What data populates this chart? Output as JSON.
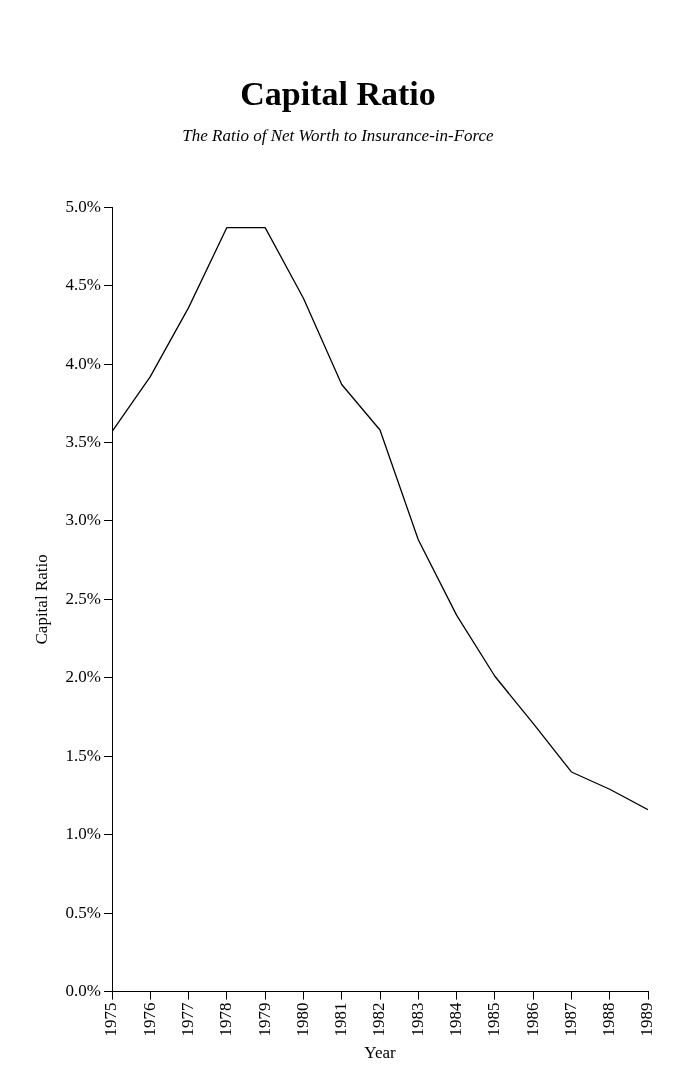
{
  "chart_data": {
    "type": "line",
    "title": "Capital Ratio",
    "subtitle": "The Ratio of Net Worth to Insurance-in-Force",
    "xlabel": "Year",
    "ylabel": "Capital Ratio",
    "x": [
      1975,
      1976,
      1977,
      1978,
      1979,
      1980,
      1981,
      1982,
      1983,
      1984,
      1985,
      1986,
      1987,
      1988,
      1989
    ],
    "series": [
      {
        "color": "#000000",
        "values": [
          3.57,
          3.92,
          4.36,
          4.87,
          4.87,
          4.42,
          3.87,
          3.58,
          2.88,
          2.4,
          2.01,
          1.71,
          1.4,
          1.29,
          1.16
        ]
      }
    ],
    "xlim": [
      1975,
      1989
    ],
    "xticks": [
      1975,
      1976,
      1977,
      1978,
      1979,
      1980,
      1981,
      1982,
      1983,
      1984,
      1985,
      1986,
      1987,
      1988,
      1989
    ],
    "ylim": [
      0,
      5
    ],
    "yticks": [
      {
        "value": 0,
        "label": "0.0%"
      },
      {
        "value": 0.5,
        "label": "0.5%"
      },
      {
        "value": 1,
        "label": "1.0%"
      },
      {
        "value": 1.5,
        "label": "1.5%"
      },
      {
        "value": 2,
        "label": "2.0%"
      },
      {
        "value": 2.5,
        "label": "2.5%"
      },
      {
        "value": 3,
        "label": "3.0%"
      },
      {
        "value": 3.5,
        "label": "3.5%"
      },
      {
        "value": 4,
        "label": "4.0%"
      },
      {
        "value": 4.5,
        "label": "4.5%"
      },
      {
        "value": 5,
        "label": "5.0%"
      }
    ],
    "grid": false,
    "legend": false,
    "marker": "none",
    "line_style": "solid"
  }
}
